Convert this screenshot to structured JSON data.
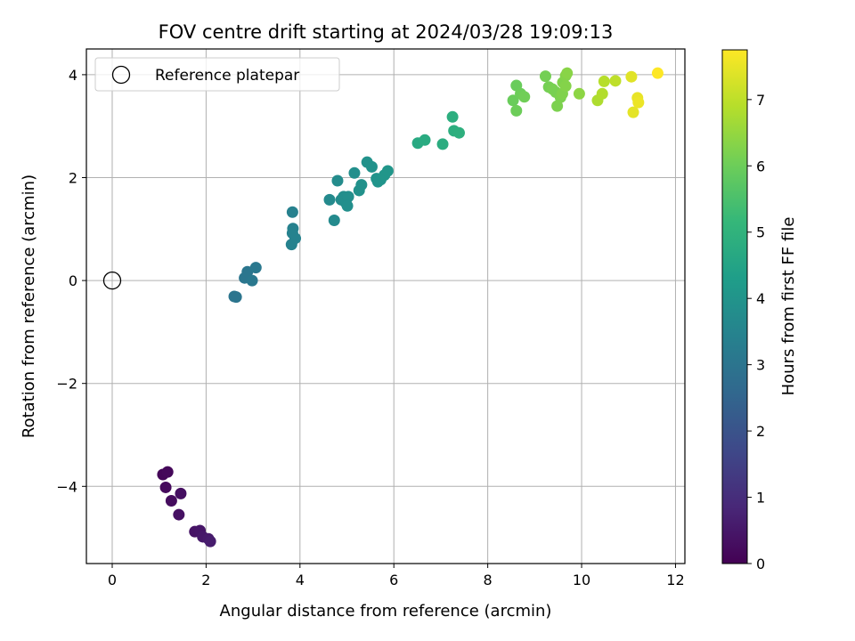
{
  "chart_data": {
    "type": "scatter",
    "title": "FOV centre drift starting at 2024/03/28 19:09:13",
    "xlabel": "Angular distance from reference (arcmin)",
    "ylabel": "Rotation from reference (arcmin)",
    "xlim": [
      -0.55,
      12.2
    ],
    "ylim": [
      -5.5,
      4.5
    ],
    "xticks": [
      0,
      2,
      4,
      6,
      8,
      10,
      12
    ],
    "yticks": [
      -4,
      -2,
      0,
      2,
      4
    ],
    "xtick_labels": [
      "0",
      "2",
      "4",
      "6",
      "8",
      "10",
      "12"
    ],
    "ytick_labels": [
      "−4",
      "−2",
      "0",
      "2",
      "4"
    ],
    "grid": true,
    "legend": {
      "placement": "top-left",
      "entries": [
        "Reference platepar"
      ]
    },
    "colorbar": {
      "label": "Hours from first FF file",
      "range": [
        0,
        7.75
      ],
      "ticks": [
        0,
        1,
        2,
        3,
        4,
        5,
        6,
        7
      ],
      "tick_labels": [
        "0",
        "1",
        "2",
        "3",
        "4",
        "5",
        "6",
        "7"
      ],
      "colormap": [
        "#440154",
        "#482878",
        "#3e4989",
        "#31688e",
        "#26828e",
        "#1f9e89",
        "#35b779",
        "#6ece58",
        "#b5de2b",
        "#fde725"
      ]
    },
    "reference_point": {
      "x": 0,
      "y": 0
    },
    "series": [
      {
        "points": [
          [
            1.08,
            -3.77,
            0.1
          ],
          [
            1.18,
            -3.72,
            0.15
          ],
          [
            1.14,
            -4.02,
            0.2
          ],
          [
            1.26,
            -4.28,
            0.25
          ],
          [
            1.46,
            -4.14,
            0.3
          ],
          [
            1.42,
            -4.55,
            0.35
          ],
          [
            1.76,
            -4.88,
            0.4
          ],
          [
            1.87,
            -4.86,
            0.45
          ],
          [
            1.93,
            -4.98,
            0.5
          ],
          [
            2.05,
            -5.02,
            0.55
          ],
          [
            2.09,
            -5.07,
            0.6
          ],
          [
            2.6,
            -0.31,
            3.0
          ],
          [
            2.64,
            -0.32,
            3.0
          ],
          [
            2.82,
            0.05,
            3.05
          ],
          [
            2.88,
            0.17,
            3.05
          ],
          [
            2.98,
            0.0,
            3.1
          ],
          [
            3.06,
            0.25,
            3.1
          ],
          [
            3.84,
            1.33,
            3.4
          ],
          [
            3.85,
            1.01,
            3.4
          ],
          [
            3.84,
            0.92,
            3.45
          ],
          [
            3.9,
            0.82,
            3.45
          ],
          [
            3.82,
            0.7,
            3.45
          ],
          [
            4.63,
            1.57,
            3.7
          ],
          [
            4.73,
            1.17,
            3.7
          ],
          [
            4.8,
            1.94,
            3.75
          ],
          [
            4.88,
            1.57,
            3.75
          ],
          [
            4.93,
            1.63,
            3.8
          ],
          [
            4.98,
            1.51,
            3.8
          ],
          [
            5.03,
            1.63,
            3.85
          ],
          [
            5.01,
            1.45,
            3.85
          ],
          [
            5.16,
            2.09,
            3.85
          ],
          [
            5.26,
            1.75,
            3.9
          ],
          [
            5.31,
            1.86,
            3.9
          ],
          [
            5.43,
            2.3,
            3.95
          ],
          [
            5.53,
            2.21,
            3.95
          ],
          [
            5.63,
            1.98,
            4.0
          ],
          [
            5.66,
            1.92,
            4.0
          ],
          [
            5.72,
            1.96,
            4.0
          ],
          [
            5.8,
            2.05,
            4.05
          ],
          [
            5.87,
            2.13,
            4.05
          ],
          [
            6.51,
            2.67,
            4.7
          ],
          [
            6.66,
            2.73,
            4.75
          ],
          [
            7.04,
            2.65,
            4.8
          ],
          [
            7.25,
            3.18,
            4.85
          ],
          [
            7.28,
            2.91,
            4.85
          ],
          [
            7.39,
            2.87,
            4.9
          ],
          [
            8.54,
            3.5,
            5.95
          ],
          [
            8.61,
            3.79,
            5.95
          ],
          [
            8.61,
            3.3,
            6.0
          ],
          [
            8.7,
            3.63,
            6.0
          ],
          [
            8.78,
            3.57,
            6.05
          ],
          [
            9.23,
            3.97,
            6.1
          ],
          [
            9.3,
            3.76,
            6.1
          ],
          [
            9.38,
            3.72,
            6.15
          ],
          [
            9.45,
            3.66,
            6.15
          ],
          [
            9.48,
            3.39,
            6.2
          ],
          [
            9.55,
            3.56,
            6.2
          ],
          [
            9.59,
            3.63,
            6.25
          ],
          [
            9.6,
            3.85,
            6.25
          ],
          [
            9.66,
            3.78,
            6.3
          ],
          [
            9.66,
            3.98,
            6.3
          ],
          [
            9.69,
            4.03,
            6.35
          ],
          [
            9.95,
            3.63,
            6.4
          ],
          [
            10.34,
            3.5,
            6.8
          ],
          [
            10.44,
            3.63,
            6.85
          ],
          [
            10.48,
            3.87,
            6.9
          ],
          [
            10.72,
            3.88,
            7.0
          ],
          [
            11.06,
            3.96,
            7.4
          ],
          [
            11.1,
            3.27,
            7.45
          ],
          [
            11.19,
            3.55,
            7.5
          ],
          [
            11.21,
            3.46,
            7.55
          ],
          [
            11.62,
            4.03,
            7.75
          ]
        ]
      }
    ]
  }
}
